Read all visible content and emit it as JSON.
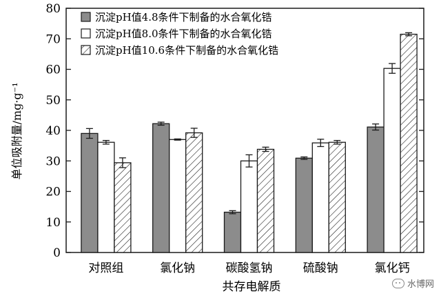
{
  "chart_data": {
    "type": "bar",
    "categories": [
      "对照组",
      "氯化钠",
      "碳酸氢钠",
      "硫酸钠",
      "氯化钙"
    ],
    "series": [
      {
        "name": "沉淀pH值4.8条件下制备的水合氧化锆",
        "values": [
          39.0,
          42.2,
          13.2,
          30.9,
          41.1
        ],
        "errors": [
          1.6,
          0.5,
          0.5,
          0.4,
          1.0
        ],
        "fill": "solid-gray"
      },
      {
        "name": "沉淀pH值8.0条件下制备的水合氧化锆",
        "values": [
          36.1,
          37.0,
          30.0,
          35.9,
          60.3
        ],
        "errors": [
          0.6,
          0.2,
          2.0,
          1.2,
          1.6
        ],
        "fill": "white"
      },
      {
        "name": "沉淀pH值10.6条件下制备的水合氧化锆",
        "values": [
          29.4,
          39.2,
          33.8,
          36.1,
          71.5
        ],
        "errors": [
          1.6,
          1.5,
          0.7,
          0.6,
          0.5
        ],
        "fill": "hatch"
      }
    ],
    "xlabel": "共存电解质",
    "ylabel": "单位吸附量/mg·g⁻¹",
    "ylim": [
      0,
      80
    ],
    "yticks": [
      0,
      10,
      20,
      30,
      40,
      50,
      60,
      70,
      80
    ],
    "legend_position": "top-left",
    "grid": false,
    "colors": {
      "gray": "#8c8c8c",
      "stroke": "#1a1a1a"
    }
  },
  "watermark": "水博网"
}
